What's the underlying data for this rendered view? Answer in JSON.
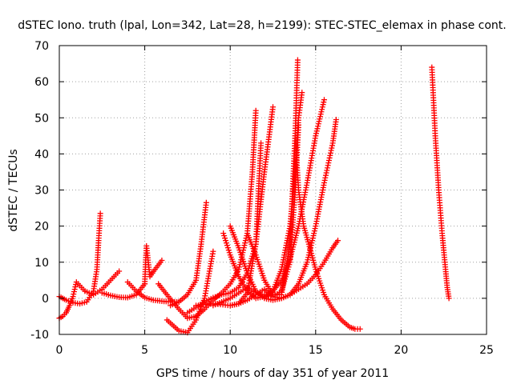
{
  "chart_data": {
    "type": "scatter",
    "title": "dSTEC Iono. truth (lpal, Lon=342, Lat=28, h=2199): STEC-STEC_elemax in phase cont.",
    "xlabel": "GPS time / hours of day 351 of year 2011",
    "ylabel": "dSTEC  / TECUs",
    "xlim": [
      0,
      25
    ],
    "ylim": [
      -10,
      70
    ],
    "xticks": [
      0,
      5,
      10,
      15,
      20,
      25
    ],
    "yticks": [
      -10,
      0,
      10,
      20,
      30,
      40,
      50,
      60,
      70
    ],
    "grid": true,
    "legend": "none",
    "marker": "plus",
    "color": "#ff0000",
    "series": [
      {
        "x": [
          0.0,
          0.4,
          0.8,
          1.2,
          1.6,
          2.0,
          2.2,
          2.3,
          2.4
        ],
        "y": [
          0.5,
          -0.5,
          -1.2,
          -1.5,
          -1.0,
          2.0,
          8.0,
          16.0,
          23.5
        ]
      },
      {
        "x": [
          0.0,
          0.2,
          0.4,
          0.6,
          0.8,
          1.0,
          1.2,
          1.5
        ],
        "y": [
          -5.5,
          -5.0,
          -4.0,
          -2.0,
          0.5,
          4.5,
          3.5,
          2.0
        ]
      },
      {
        "x": [
          1.5,
          2.0,
          2.5,
          3.0,
          3.5
        ],
        "y": [
          2.0,
          1.0,
          2.5,
          5.0,
          7.5
        ]
      },
      {
        "x": [
          2.5,
          3.0,
          3.5,
          4.0,
          4.5,
          5.0
        ],
        "y": [
          1.5,
          0.8,
          0.3,
          0.2,
          1.0,
          4.0
        ]
      },
      {
        "x": [
          4.0,
          4.5,
          5.0,
          5.5,
          6.0,
          6.5,
          7.0
        ],
        "y": [
          4.5,
          2.0,
          0.2,
          -0.5,
          -0.8,
          -1.0,
          -1.0
        ]
      },
      {
        "x": [
          5.0,
          5.05,
          5.1,
          5.3,
          5.6,
          6.0
        ],
        "y": [
          4.0,
          10.0,
          14.5,
          6.0,
          8.0,
          10.5
        ]
      },
      {
        "x": [
          5.8,
          6.3,
          7.0,
          7.5,
          8.0,
          8.5,
          9.0,
          9.5,
          10.0,
          10.5,
          11.0,
          11.3,
          11.5
        ],
        "y": [
          4.0,
          1.0,
          -3.0,
          -5.5,
          -5.0,
          -3.0,
          -0.5,
          1.5,
          4.0,
          8.0,
          18.0,
          35.0,
          52.0
        ]
      },
      {
        "x": [
          6.5,
          7.0,
          7.5,
          8.0,
          8.3,
          8.6
        ],
        "y": [
          -2.0,
          -1.0,
          1.0,
          5.0,
          15.0,
          26.5
        ]
      },
      {
        "x": [
          6.3,
          7.0,
          7.5,
          8.0,
          8.5,
          9.0
        ],
        "y": [
          -6.0,
          -9.0,
          -9.5,
          -6.0,
          0.0,
          13.0
        ]
      },
      {
        "x": [
          7.5,
          8.5,
          9.0,
          9.5,
          10.0,
          10.5,
          11.0,
          11.5,
          12.0,
          12.5
        ],
        "y": [
          -4.0,
          -1.0,
          0.2,
          1.0,
          1.5,
          3.0,
          7.0,
          15.0,
          35.0,
          53.0
        ]
      },
      {
        "x": [
          8.0,
          9.0,
          10.0,
          10.5,
          11.0,
          11.5,
          11.8
        ],
        "y": [
          -2.0,
          -1.5,
          -2.0,
          -1.5,
          1.5,
          15.0,
          43.0
        ]
      },
      {
        "x": [
          9.0,
          9.5,
          10.0,
          10.5,
          11.0,
          11.5,
          12.0,
          12.5,
          13.0,
          13.5,
          14.0,
          14.5,
          15.0,
          15.5,
          16.0,
          16.3
        ],
        "y": [
          -2.0,
          -1.0,
          0.0,
          1.5,
          3.0,
          1.5,
          0.0,
          -0.5,
          0.0,
          1.0,
          2.5,
          4.0,
          6.5,
          10.0,
          14.0,
          16.0
        ]
      },
      {
        "x": [
          10.0,
          10.5,
          11.0,
          11.5,
          12.0,
          12.5,
          13.0,
          13.5,
          14.0,
          14.5,
          15.0,
          15.5,
          16.0,
          16.2
        ],
        "y": [
          -2.0,
          -1.5,
          -0.5,
          1.0,
          2.5,
          0.5,
          0.0,
          1.0,
          4.0,
          10.0,
          20.0,
          32.0,
          43.0,
          49.5
        ]
      },
      {
        "x": [
          9.6,
          10.0,
          10.5,
          11.0,
          11.5,
          12.0,
          12.5,
          13.0,
          13.5,
          14.0,
          14.5,
          15.0,
          15.5
        ],
        "y": [
          18.0,
          12.0,
          6.0,
          2.0,
          0.0,
          0.5,
          2.0,
          5.0,
          11.0,
          20.0,
          32.0,
          45.0,
          55.0
        ]
      },
      {
        "x": [
          10.0,
          10.5,
          11.0,
          11.5,
          12.0,
          12.5,
          13.0,
          13.5,
          13.8,
          14.0,
          14.2
        ],
        "y": [
          20.0,
          14.0,
          7.0,
          2.0,
          0.2,
          2.0,
          8.0,
          20.0,
          35.0,
          50.0,
          57.0
        ]
      },
      {
        "x": [
          11.0,
          11.5,
          12.0,
          12.5,
          13.0,
          13.5,
          13.8,
          13.95
        ],
        "y": [
          18.0,
          12.0,
          5.0,
          1.0,
          1.0,
          15.0,
          45.0,
          66.0
        ]
      },
      {
        "x": [
          12.0,
          12.5,
          13.0,
          13.5,
          13.8,
          14.0
        ],
        "y": [
          1.0,
          0.5,
          2.0,
          10.0,
          30.0,
          48.0
        ]
      },
      {
        "x": [
          13.8,
          14.0,
          14.3,
          14.6,
          15.0,
          15.5,
          16.0,
          16.5,
          17.0,
          17.3,
          17.6
        ],
        "y": [
          45.0,
          30.0,
          20.0,
          15.0,
          8.0,
          1.0,
          -3.0,
          -6.0,
          -8.0,
          -8.5,
          -8.5
        ]
      },
      {
        "x": [
          21.8,
          22.0,
          22.2,
          22.4,
          22.6,
          22.7,
          22.8
        ],
        "y": [
          64.0,
          45.0,
          30.0,
          18.0,
          8.0,
          3.0,
          0.0
        ]
      }
    ]
  }
}
